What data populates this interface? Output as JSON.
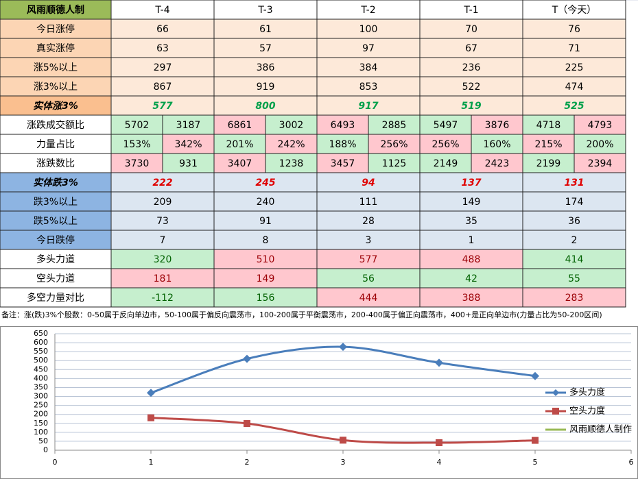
{
  "table": {
    "header": [
      "风雨顺德人制",
      "T-4",
      "T-3",
      "T-2",
      "T-1",
      "T（今天）"
    ],
    "rows": [
      {
        "label": "今日涨停",
        "label_color": "#fcd5b4",
        "cells": [
          66,
          61,
          100,
          70,
          76
        ],
        "cell_colors": [
          "#fde9d9",
          "#fde9d9",
          "#fde9d9",
          "#fde9d9",
          "#fde9d9"
        ]
      },
      {
        "label": "真实涨停",
        "label_color": "#fcd5b4",
        "cells": [
          63,
          57,
          97,
          67,
          71
        ],
        "cell_colors": [
          "#fde9d9",
          "#fde9d9",
          "#fde9d9",
          "#fde9d9",
          "#fde9d9"
        ]
      },
      {
        "label": "涨5%以上",
        "label_color": "#fcd5b4",
        "cells": [
          297,
          386,
          384,
          236,
          225
        ],
        "cell_colors": [
          "#fde9d9",
          "#fde9d9",
          "#fde9d9",
          "#fde9d9",
          "#fde9d9"
        ]
      },
      {
        "label": "涨3%以上",
        "label_color": "#fcd5b4",
        "cells": [
          867,
          919,
          853,
          522,
          474
        ],
        "cell_colors": [
          "#fde9d9",
          "#fde9d9",
          "#fde9d9",
          "#fde9d9",
          "#fde9d9"
        ]
      },
      {
        "label": "实体涨3%",
        "label_color": "#fabf8f",
        "emphasis": "#00a04a",
        "cells": [
          577,
          800,
          917,
          519,
          525
        ],
        "cell_colors": [
          "#fde9d9",
          "#fde9d9",
          "#fde9d9",
          "#fde9d9",
          "#fde9d9"
        ]
      },
      {
        "label": "涨跌成交额比",
        "label_color": "#ffffff",
        "cells": [
          [
            5702,
            3187
          ],
          [
            6861,
            3002
          ],
          [
            6493,
            2885
          ],
          [
            5497,
            3876
          ],
          [
            4718,
            4793
          ]
        ],
        "cell_colors": [
          [
            "#c6efce",
            "#c6efce"
          ],
          [
            "#ffc7ce",
            "#c6efce"
          ],
          [
            "#ffc7ce",
            "#c6efce"
          ],
          [
            "#c6efce",
            "#ffc7ce"
          ],
          [
            "#c6efce",
            "#ffc7ce"
          ]
        ]
      },
      {
        "label": "力量占比",
        "label_color": "#ffffff",
        "cells": [
          [
            "153%",
            "342%"
          ],
          [
            "201%",
            "242%"
          ],
          [
            "188%",
            "256%"
          ],
          [
            "256%",
            "160%"
          ],
          [
            "215%",
            "200%"
          ]
        ],
        "cell_colors": [
          [
            "#c6efce",
            "#ffc7ce"
          ],
          [
            "#c6efce",
            "#ffc7ce"
          ],
          [
            "#c6efce",
            "#ffc7ce"
          ],
          [
            "#ffc7ce",
            "#c6efce"
          ],
          [
            "#ffc7ce",
            "#c6efce"
          ]
        ]
      },
      {
        "label": "涨跌数比",
        "label_color": "#ffffff",
        "cells": [
          [
            3730,
            931
          ],
          [
            3407,
            1238
          ],
          [
            3457,
            1125
          ],
          [
            2149,
            2423
          ],
          [
            2199,
            2394
          ]
        ],
        "cell_colors": [
          [
            "#ffc7ce",
            "#c6efce"
          ],
          [
            "#ffc7ce",
            "#c6efce"
          ],
          [
            "#ffc7ce",
            "#c6efce"
          ],
          [
            "#c6efce",
            "#ffc7ce"
          ],
          [
            "#c6efce",
            "#ffc7ce"
          ]
        ]
      },
      {
        "label": "实体跌3%",
        "label_color": "#8db4e2",
        "emphasis": "#e00000",
        "cells": [
          222,
          245,
          94,
          137,
          131
        ],
        "cell_colors": [
          "#dce6f1",
          "#dce6f1",
          "#dce6f1",
          "#dce6f1",
          "#dce6f1"
        ]
      },
      {
        "label": "跌3%以上",
        "label_color": "#8db4e2",
        "cells": [
          209,
          240,
          111,
          149,
          174
        ],
        "cell_colors": [
          "#dce6f1",
          "#dce6f1",
          "#dce6f1",
          "#dce6f1",
          "#dce6f1"
        ]
      },
      {
        "label": "跌5%以上",
        "label_color": "#8db4e2",
        "cells": [
          73,
          91,
          28,
          35,
          36
        ],
        "cell_colors": [
          "#dce6f1",
          "#dce6f1",
          "#dce6f1",
          "#dce6f1",
          "#dce6f1"
        ]
      },
      {
        "label": "今日跌停",
        "label_color": "#8db4e2",
        "cells": [
          7,
          8,
          3,
          1,
          2
        ],
        "cell_colors": [
          "#dce6f1",
          "#dce6f1",
          "#dce6f1",
          "#dce6f1",
          "#dce6f1"
        ]
      },
      {
        "label": "多头力道",
        "label_color": "#ffffff",
        "cells": [
          320,
          510,
          577,
          488,
          414
        ],
        "cell_colors": [
          "#c6efce",
          "#ffc7ce",
          "#ffc7ce",
          "#ffc7ce",
          "#c6efce"
        ]
      },
      {
        "label": "空头力道",
        "label_color": "#ffffff",
        "cells": [
          181,
          149,
          56,
          42,
          55
        ],
        "cell_colors": [
          "#ffc7ce",
          "#ffc7ce",
          "#c6efce",
          "#c6efce",
          "#c6efce"
        ]
      },
      {
        "label": "多空力量对比",
        "label_color": "#ffffff",
        "cells": [
          -112,
          156,
          444,
          388,
          283
        ],
        "cell_colors": [
          "#c6efce",
          "#c6efce",
          "#ffc7ce",
          "#ffc7ce",
          "#ffc7ce"
        ]
      }
    ],
    "note": "备注：涨(跌)3%个股数：0-50属于反向单边市，50-100属于偏反向震荡市，100-200属于平衡震荡市，200-400属于偏正向震荡市，400+是正向单边市(力量占比为50-200区间)"
  },
  "chart_data": {
    "type": "scatter",
    "x": [
      1,
      2,
      3,
      4,
      5
    ],
    "series": [
      {
        "name": "多头力度",
        "color": "#4a7ebb",
        "marker": "diamond",
        "values": [
          320,
          510,
          577,
          488,
          414
        ]
      },
      {
        "name": "空头力度",
        "color": "#be4b48",
        "marker": "square",
        "values": [
          181,
          149,
          56,
          42,
          55
        ]
      },
      {
        "name": "风雨顺德人制作",
        "color": "#98b954"
      }
    ],
    "xlim": [
      0,
      6
    ],
    "xticks": [
      0,
      1,
      2,
      3,
      4,
      5,
      6
    ],
    "ylim": [
      0,
      650
    ],
    "yticks": [
      0,
      50,
      100,
      150,
      200,
      250,
      300,
      350,
      400,
      450,
      500,
      550,
      600,
      650
    ],
    "grid": true,
    "smooth": true,
    "legend": "right"
  }
}
